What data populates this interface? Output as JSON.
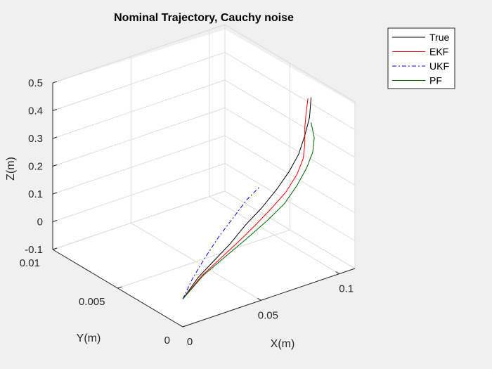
{
  "chart_data": {
    "type": "line",
    "title": "Nominal Trajectory, Cauchy noise",
    "xlabel": "X(m)",
    "ylabel": "Y(m)",
    "zlabel": "Z(m)",
    "xlim": [
      0,
      0.11
    ],
    "ylim": [
      0,
      0.01
    ],
    "zlim": [
      -0.1,
      0.5
    ],
    "xticks": [
      "0",
      "0.05",
      "0.1"
    ],
    "yticks": [
      "0",
      "0.005",
      "0.01"
    ],
    "zticks": [
      "-0.1",
      "0",
      "0.1",
      "0.2",
      "0.3",
      "0.4",
      "0.5"
    ],
    "grid": true,
    "view": "3d-default",
    "legend_position": "top-right",
    "series": [
      {
        "name": "True",
        "color": "#000000",
        "style": "solid",
        "points": [
          [
            0,
            0,
            0
          ],
          [
            0.01,
            0,
            0.06
          ],
          [
            0.02,
            0,
            0.1
          ],
          [
            0.03,
            0,
            0.14
          ],
          [
            0.04,
            0,
            0.19
          ],
          [
            0.05,
            0,
            0.23
          ],
          [
            0.06,
            0,
            0.28
          ],
          [
            0.068,
            0,
            0.33
          ],
          [
            0.074,
            0,
            0.38
          ],
          [
            0.078,
            0,
            0.44
          ],
          [
            0.081,
            0,
            0.5
          ],
          [
            0.082,
            0,
            0.57
          ]
        ]
      },
      {
        "name": "EKF",
        "color": "#ff0000",
        "style": "solid",
        "points": [
          [
            0,
            0,
            0
          ],
          [
            0.012,
            0,
            0.06
          ],
          [
            0.024,
            0,
            0.1
          ],
          [
            0.036,
            0,
            0.14
          ],
          [
            0.047,
            0,
            0.18
          ],
          [
            0.057,
            0,
            0.22
          ],
          [
            0.066,
            0,
            0.26
          ],
          [
            0.073,
            0,
            0.31
          ],
          [
            0.077,
            0,
            0.36
          ],
          [
            0.078,
            0,
            0.41
          ],
          [
            0.078,
            0,
            0.47
          ],
          [
            0.079,
            0,
            0.53
          ],
          [
            0.08,
            0,
            0.57
          ]
        ]
      },
      {
        "name": "UKF",
        "color": "#0000ff",
        "style": "dashdot",
        "points": [
          [
            0,
            0,
            0
          ],
          [
            0.006,
            0,
            0.06
          ],
          [
            0.014,
            0,
            0.12
          ],
          [
            0.023,
            0,
            0.18
          ],
          [
            0.032,
            0,
            0.23
          ],
          [
            0.041,
            0,
            0.28
          ],
          [
            0.049,
            0,
            0.31
          ]
        ]
      },
      {
        "name": "PF",
        "color": "#006400",
        "style": "solid",
        "points": [
          [
            0,
            0,
            0
          ],
          [
            0.013,
            0,
            0.06
          ],
          [
            0.027,
            0,
            0.1
          ],
          [
            0.041,
            0,
            0.14
          ],
          [
            0.054,
            0,
            0.18
          ],
          [
            0.065,
            0,
            0.22
          ],
          [
            0.073,
            0,
            0.27
          ],
          [
            0.079,
            0,
            0.32
          ],
          [
            0.083,
            0,
            0.37
          ],
          [
            0.084,
            0,
            0.42
          ],
          [
            0.082,
            0,
            0.48
          ]
        ]
      }
    ]
  }
}
